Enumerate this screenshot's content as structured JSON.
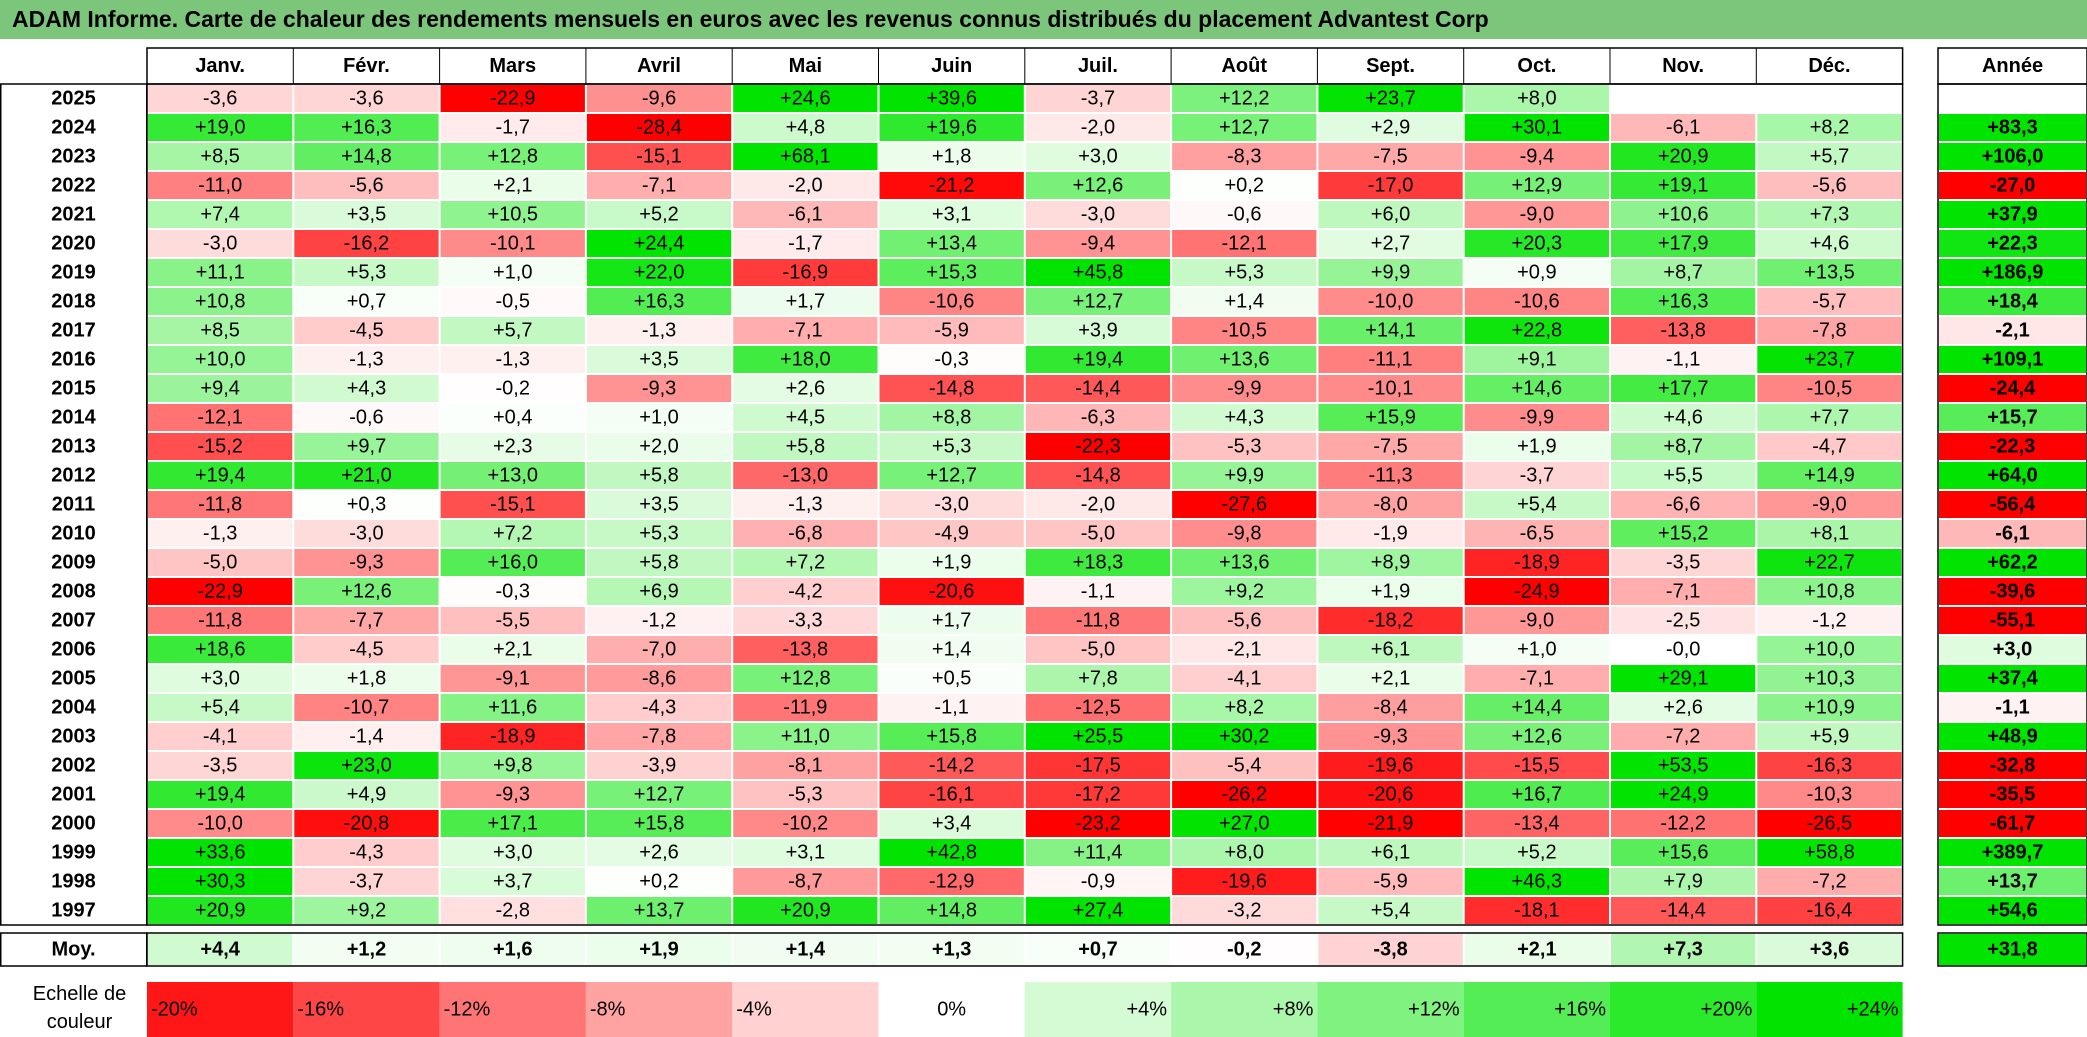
{
  "title": "ADAM Informe. Carte de chaleur des rendements mensuels en euros avec les revenus connus distribués du placement Advantest Corp",
  "chart_data": {
    "type": "heatmap",
    "months": [
      "Janv.",
      "Févr.",
      "Mars",
      "Avril",
      "Mai",
      "Juin",
      "Juil.",
      "Août",
      "Sept.",
      "Oct.",
      "Nov.",
      "Déc."
    ],
    "year_header": "Année",
    "rows": [
      {
        "year": "2025",
        "values": [
          "-3,6",
          "-3,6",
          "-22,9",
          "-9,6",
          "+24,6",
          "+39,6",
          "-3,7",
          "+12,2",
          "+23,7",
          "+8,0",
          "",
          ""
        ],
        "annual": ""
      },
      {
        "year": "2024",
        "values": [
          "+19,0",
          "+16,3",
          "-1,7",
          "-28,4",
          "+4,8",
          "+19,6",
          "-2,0",
          "+12,7",
          "+2,9",
          "+30,1",
          "-6,1",
          "+8,2"
        ],
        "annual": "+83,3"
      },
      {
        "year": "2023",
        "values": [
          "+8,5",
          "+14,8",
          "+12,8",
          "-15,1",
          "+68,1",
          "+1,8",
          "+3,0",
          "-8,3",
          "-7,5",
          "-9,4",
          "+20,9",
          "+5,7"
        ],
        "annual": "+106,0"
      },
      {
        "year": "2022",
        "values": [
          "-11,0",
          "-5,6",
          "+2,1",
          "-7,1",
          "-2,0",
          "-21,2",
          "+12,6",
          "+0,2",
          "-17,0",
          "+12,9",
          "+19,1",
          "-5,6"
        ],
        "annual": "-27,0"
      },
      {
        "year": "2021",
        "values": [
          "+7,4",
          "+3,5",
          "+10,5",
          "+5,2",
          "-6,1",
          "+3,1",
          "-3,0",
          "-0,6",
          "+6,0",
          "-9,0",
          "+10,6",
          "+7,3"
        ],
        "annual": "+37,9"
      },
      {
        "year": "2020",
        "values": [
          "-3,0",
          "-16,2",
          "-10,1",
          "+24,4",
          "-1,7",
          "+13,4",
          "-9,4",
          "-12,1",
          "+2,7",
          "+20,3",
          "+17,9",
          "+4,6"
        ],
        "annual": "+22,3"
      },
      {
        "year": "2019",
        "values": [
          "+11,1",
          "+5,3",
          "+1,0",
          "+22,0",
          "-16,9",
          "+15,3",
          "+45,8",
          "+5,3",
          "+9,9",
          "+0,9",
          "+8,7",
          "+13,5"
        ],
        "annual": "+186,9"
      },
      {
        "year": "2018",
        "values": [
          "+10,8",
          "+0,7",
          "-0,5",
          "+16,3",
          "+1,7",
          "-10,6",
          "+12,7",
          "+1,4",
          "-10,0",
          "-10,6",
          "+16,3",
          "-5,7"
        ],
        "annual": "+18,4"
      },
      {
        "year": "2017",
        "values": [
          "+8,5",
          "-4,5",
          "+5,7",
          "-1,3",
          "-7,1",
          "-5,9",
          "+3,9",
          "-10,5",
          "+14,1",
          "+22,8",
          "-13,8",
          "-7,8"
        ],
        "annual": "-2,1"
      },
      {
        "year": "2016",
        "values": [
          "+10,0",
          "-1,3",
          "-1,3",
          "+3,5",
          "+18,0",
          "-0,3",
          "+19,4",
          "+13,6",
          "-11,1",
          "+9,1",
          "-1,1",
          "+23,7"
        ],
        "annual": "+109,1"
      },
      {
        "year": "2015",
        "values": [
          "+9,4",
          "+4,3",
          "-0,2",
          "-9,3",
          "+2,6",
          "-14,8",
          "-14,4",
          "-9,9",
          "-10,1",
          "+14,6",
          "+17,7",
          "-10,5"
        ],
        "annual": "-24,4"
      },
      {
        "year": "2014",
        "values": [
          "-12,1",
          "-0,6",
          "+0,4",
          "+1,0",
          "+4,5",
          "+8,8",
          "-6,3",
          "+4,3",
          "+15,9",
          "-9,9",
          "+4,6",
          "+7,7"
        ],
        "annual": "+15,7"
      },
      {
        "year": "2013",
        "values": [
          "-15,2",
          "+9,7",
          "+2,3",
          "+2,0",
          "+5,8",
          "+5,3",
          "-22,3",
          "-5,3",
          "-7,5",
          "+1,9",
          "+8,7",
          "-4,7"
        ],
        "annual": "-22,3"
      },
      {
        "year": "2012",
        "values": [
          "+19,4",
          "+21,0",
          "+13,0",
          "+5,8",
          "-13,0",
          "+12,7",
          "-14,8",
          "+9,9",
          "-11,3",
          "-3,7",
          "+5,5",
          "+14,9"
        ],
        "annual": "+64,0"
      },
      {
        "year": "2011",
        "values": [
          "-11,8",
          "+0,3",
          "-15,1",
          "+3,5",
          "-1,3",
          "-3,0",
          "-2,0",
          "-27,6",
          "-8,0",
          "+5,4",
          "-6,6",
          "-9,0"
        ],
        "annual": "-56,4"
      },
      {
        "year": "2010",
        "values": [
          "-1,3",
          "-3,0",
          "+7,2",
          "+5,3",
          "-6,8",
          "-4,9",
          "-5,0",
          "-9,8",
          "-1,9",
          "-6,5",
          "+15,2",
          "+8,1"
        ],
        "annual": "-6,1"
      },
      {
        "year": "2009",
        "values": [
          "-5,0",
          "-9,3",
          "+16,0",
          "+5,8",
          "+7,2",
          "+1,9",
          "+18,3",
          "+13,6",
          "+8,9",
          "-18,9",
          "-3,5",
          "+22,7"
        ],
        "annual": "+62,2"
      },
      {
        "year": "2008",
        "values": [
          "-22,9",
          "+12,6",
          "-0,3",
          "+6,9",
          "-4,2",
          "-20,6",
          "-1,1",
          "+9,2",
          "+1,9",
          "-24,9",
          "-7,1",
          "+10,8"
        ],
        "annual": "-39,6"
      },
      {
        "year": "2007",
        "values": [
          "-11,8",
          "-7,7",
          "-5,5",
          "-1,2",
          "-3,3",
          "+1,7",
          "-11,8",
          "-5,6",
          "-18,2",
          "-9,0",
          "-2,5",
          "-1,2"
        ],
        "annual": "-55,1"
      },
      {
        "year": "2006",
        "values": [
          "+18,6",
          "-4,5",
          "+2,1",
          "-7,0",
          "-13,8",
          "+1,4",
          "-5,0",
          "-2,1",
          "+6,1",
          "+1,0",
          "-0,0",
          "+10,0"
        ],
        "annual": "+3,0"
      },
      {
        "year": "2005",
        "values": [
          "+3,0",
          "+1,8",
          "-9,1",
          "-8,6",
          "+12,8",
          "+0,5",
          "+7,8",
          "-4,1",
          "+2,1",
          "-7,1",
          "+29,1",
          "+10,3"
        ],
        "annual": "+37,4"
      },
      {
        "year": "2004",
        "values": [
          "+5,4",
          "-10,7",
          "+11,6",
          "-4,3",
          "-11,9",
          "-1,1",
          "-12,5",
          "+8,2",
          "-8,4",
          "+14,4",
          "+2,6",
          "+10,9"
        ],
        "annual": "-1,1"
      },
      {
        "year": "2003",
        "values": [
          "-4,1",
          "-1,4",
          "-18,9",
          "-7,8",
          "+11,0",
          "+15,8",
          "+25,5",
          "+30,2",
          "-9,3",
          "+12,6",
          "-7,2",
          "+5,9"
        ],
        "annual": "+48,9"
      },
      {
        "year": "2002",
        "values": [
          "-3,5",
          "+23,0",
          "+9,8",
          "-3,9",
          "-8,1",
          "-14,2",
          "-17,5",
          "-5,4",
          "-19,6",
          "-15,5",
          "+53,5",
          "-16,3"
        ],
        "annual": "-32,8"
      },
      {
        "year": "2001",
        "values": [
          "+19,4",
          "+4,9",
          "-9,3",
          "+12,7",
          "-5,3",
          "-16,1",
          "-17,2",
          "-26,2",
          "-20,6",
          "+16,7",
          "+24,9",
          "-10,3"
        ],
        "annual": "-35,5"
      },
      {
        "year": "2000",
        "values": [
          "-10,0",
          "-20,8",
          "+17,1",
          "+15,8",
          "-10,2",
          "+3,4",
          "-23,2",
          "+27,0",
          "-21,9",
          "-13,4",
          "-12,2",
          "-26,5"
        ],
        "annual": "-61,7"
      },
      {
        "year": "1999",
        "values": [
          "+33,6",
          "-4,3",
          "+3,0",
          "+2,6",
          "+3,1",
          "+42,8",
          "+11,4",
          "+8,0",
          "+6,1",
          "+5,2",
          "+15,6",
          "+58,8"
        ],
        "annual": "+389,7"
      },
      {
        "year": "1998",
        "values": [
          "+30,3",
          "-3,7",
          "+3,7",
          "+0,2",
          "-8,7",
          "-12,9",
          "-0,9",
          "-19,6",
          "-5,9",
          "+46,3",
          "+7,9",
          "-7,2"
        ],
        "annual": "+13,7"
      },
      {
        "year": "1997",
        "values": [
          "+20,9",
          "+9,2",
          "-2,8",
          "+13,7",
          "+20,9",
          "+14,8",
          "+27,4",
          "-3,2",
          "+5,4",
          "-18,1",
          "-14,4",
          "-16,4"
        ],
        "annual": "+54,6"
      }
    ],
    "average": {
      "label": "Moy.",
      "values": [
        "+4,4",
        "+1,2",
        "+1,6",
        "+1,9",
        "+1,4",
        "+1,3",
        "+0,7",
        "-0,2",
        "-3,8",
        "+2,1",
        "+7,3",
        "+3,6"
      ],
      "annual": "+31,8"
    },
    "scale": {
      "label_line1": "Echelle de",
      "label_line2": "couleur",
      "steps": [
        "-20%",
        "-16%",
        "-12%",
        "-8%",
        "-4%",
        "0%",
        "+4%",
        "+8%",
        "+12%",
        "+16%",
        "+20%",
        "+24%"
      ],
      "step_values": [
        -20,
        -16,
        -12,
        -8,
        -4,
        0,
        4,
        8,
        12,
        16,
        20,
        24
      ]
    },
    "colors": {
      "negative_max": "#ff0000",
      "neutral": "#ffffff",
      "positive_max": "#00e400",
      "title_bar": "#7bc67b"
    }
  }
}
